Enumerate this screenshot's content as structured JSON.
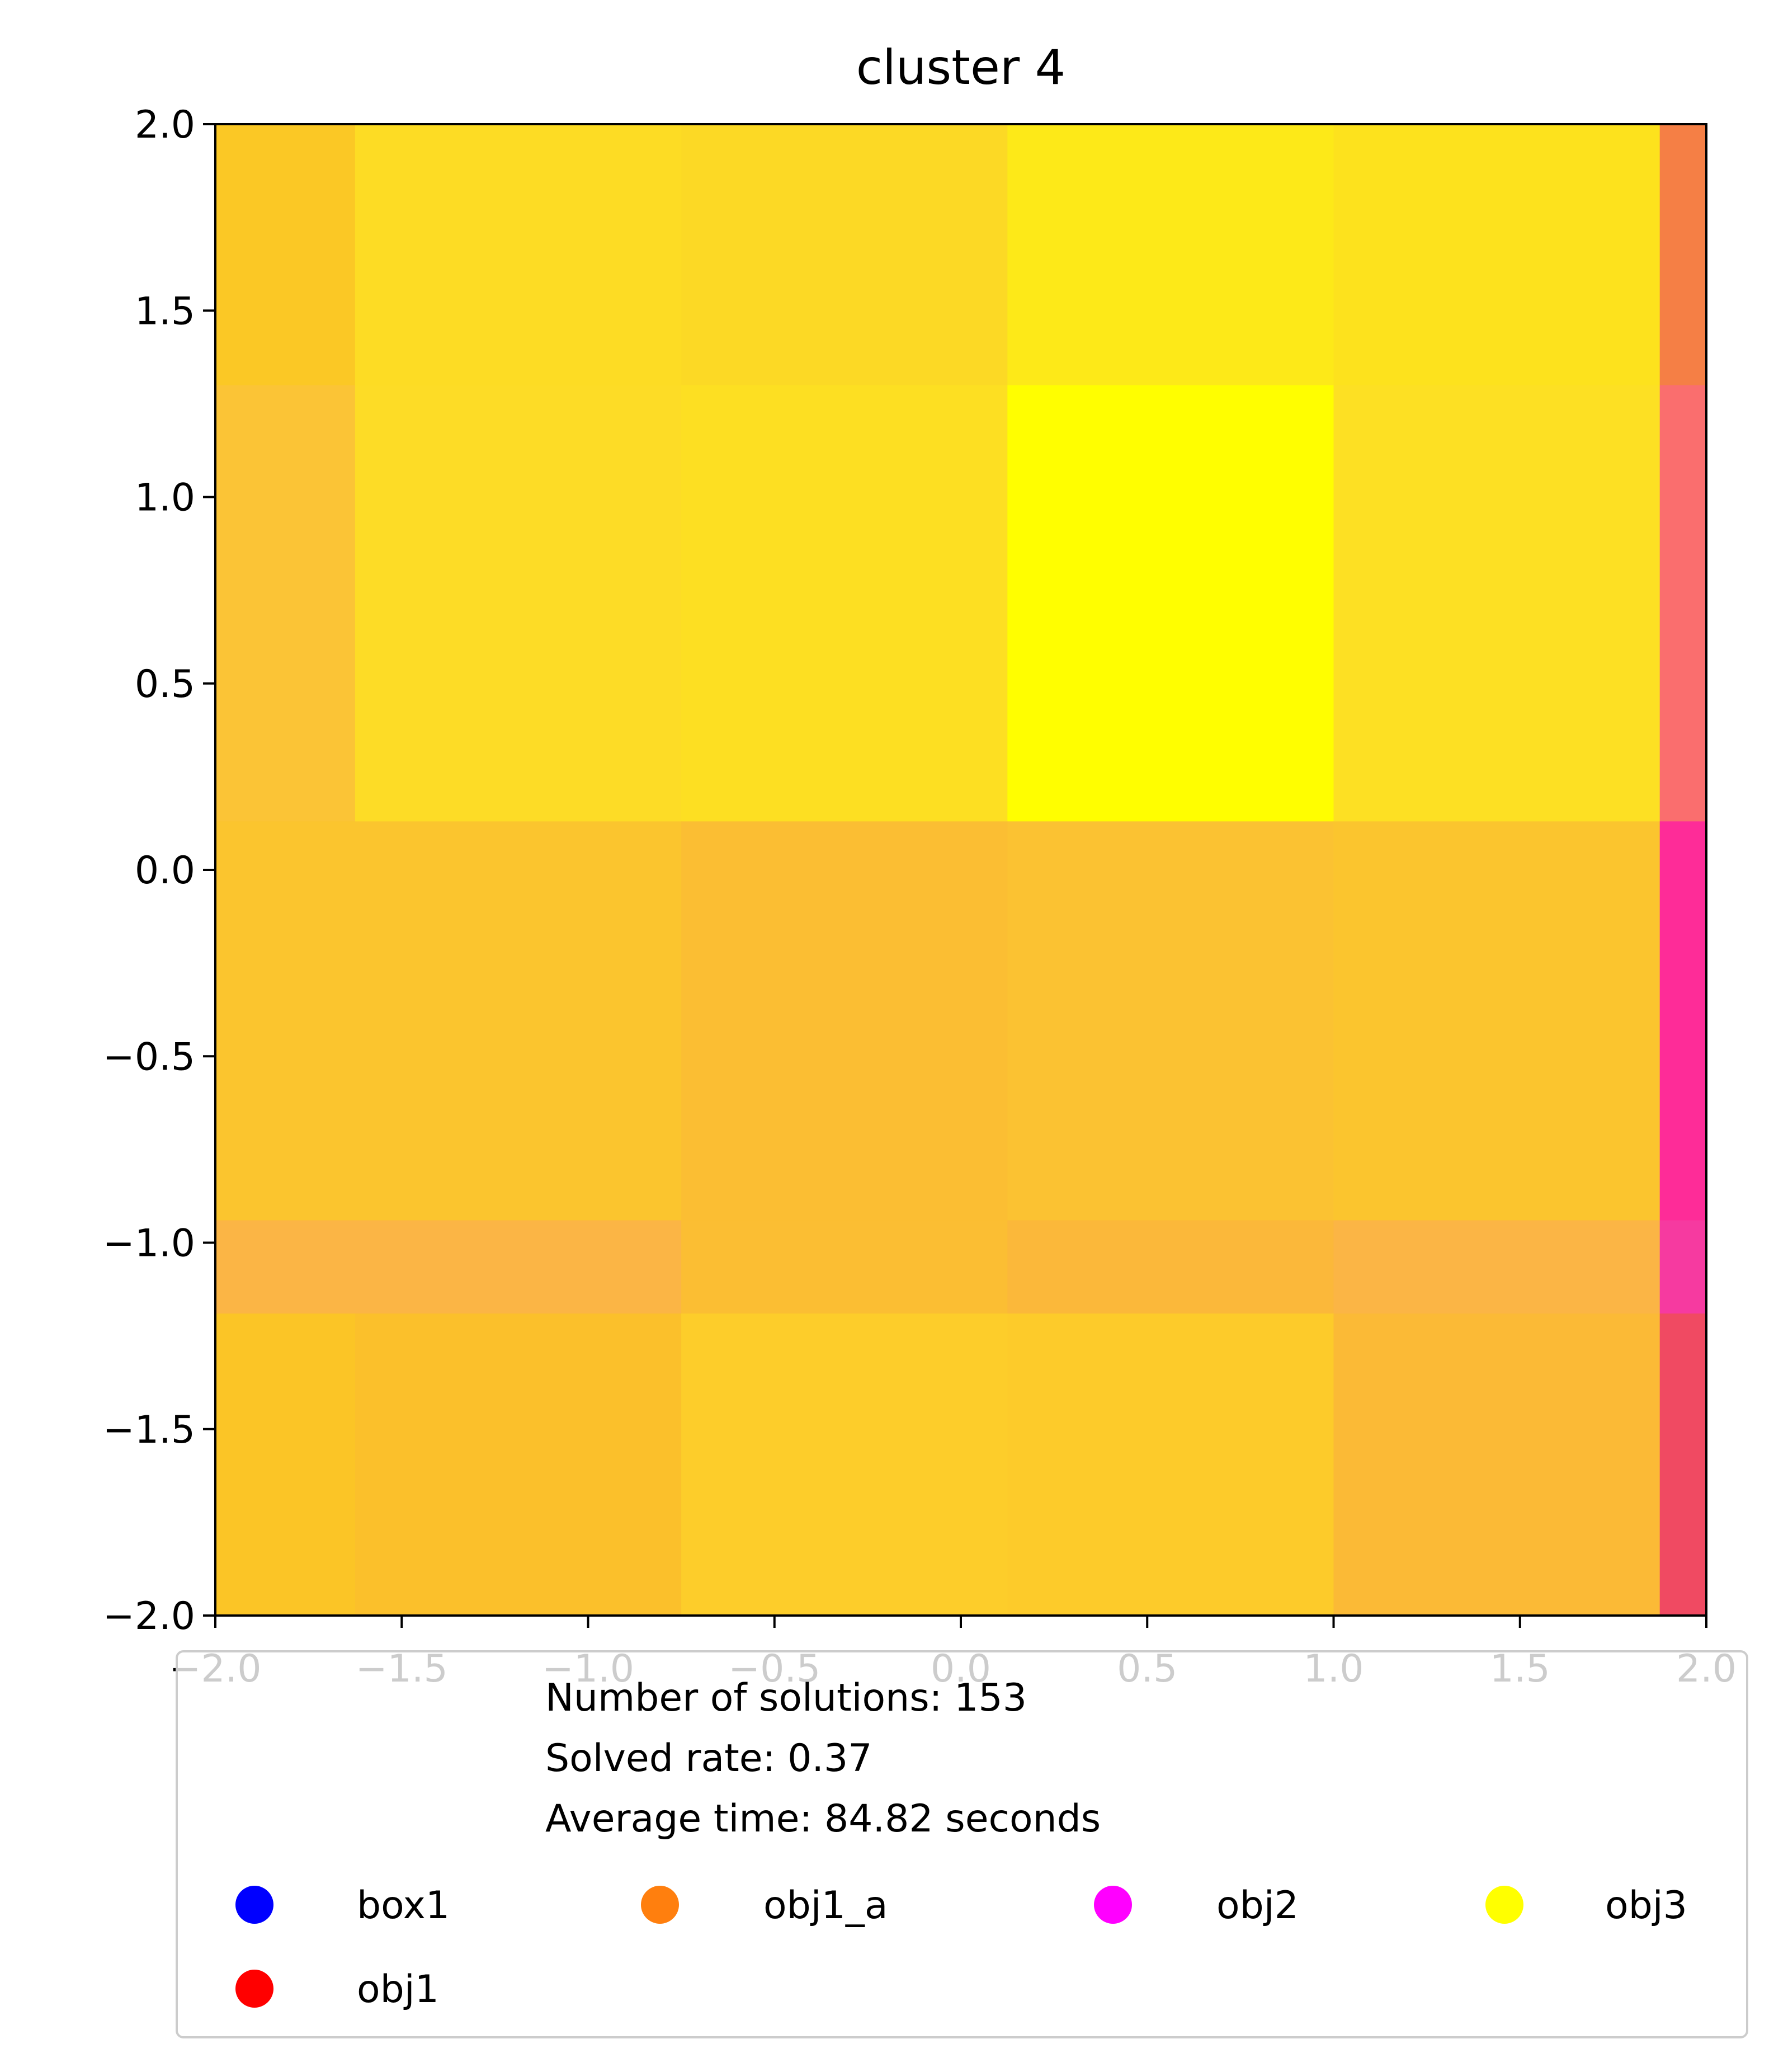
{
  "chart_data": {
    "type": "heatmap",
    "title": "cluster 4",
    "xlabel": "",
    "ylabel": "",
    "xlim": [
      -2.0,
      2.0
    ],
    "ylim": [
      -2.0,
      2.0
    ],
    "x_ticks": [
      "−2.0",
      "−1.5",
      "−1.0",
      "−0.5",
      "0.0",
      "0.5",
      "1.0",
      "1.5",
      "2.0"
    ],
    "y_ticks": [
      "2.0",
      "1.5",
      "1.0",
      "0.5",
      "0.0",
      "−0.5",
      "−1.0",
      "−1.5",
      "−2.0"
    ],
    "x_tick_values": [
      -2.0,
      -1.5,
      -1.0,
      -0.5,
      0.0,
      0.5,
      1.0,
      1.5,
      2.0
    ],
    "y_tick_values": [
      2.0,
      1.5,
      1.0,
      0.5,
      0.0,
      -0.5,
      -1.0,
      -1.5,
      -2.0
    ],
    "x_edges": [
      -2.0,
      -1.625,
      -0.75,
      0.125,
      1.0,
      1.875,
      2.0
    ],
    "y_edges": [
      2.0,
      1.3,
      0.13,
      -0.94,
      -1.19,
      -2.0
    ],
    "cell_colors": [
      [
        "#fbc825",
        "#fddc24",
        "#fcd925",
        "#fde918",
        "#fde21d",
        "#f57f45"
      ],
      [
        "#fbc436",
        "#fddc26",
        "#fddf22",
        "#fffe00",
        "#fde023",
        "#fa6e6e"
      ],
      [
        "#fbc52e",
        "#fbc52e",
        "#fbbe33",
        "#fbc232",
        "#fbc52e",
        "#fe2c98"
      ],
      [
        "#fbb545",
        "#fbb545",
        "#fbbe33",
        "#fbb83a",
        "#fbb545",
        "#f63aa0"
      ],
      [
        "#fbc526",
        "#fbc02b",
        "#fdcd2a",
        "#fdcb2a",
        "#fbba36",
        "#f04a62"
      ]
    ],
    "legend": {
      "title_lines": [
        "Number of solutions: 153",
        " Solved rate: 0.37",
        " Average time: 84.82 seconds"
      ],
      "items": [
        {
          "label": "box1",
          "color": "#0000ff"
        },
        {
          "label": "obj1_a",
          "color": "#ff7f0e"
        },
        {
          "label": "obj2",
          "color": "#ff00ff"
        },
        {
          "label": "obj3",
          "color": "#ffff00"
        },
        {
          "label": "obj1",
          "color": "#ff0000"
        }
      ],
      "columns": 4,
      "placement": "below plot, overlapping x tick labels"
    },
    "grid": false
  }
}
